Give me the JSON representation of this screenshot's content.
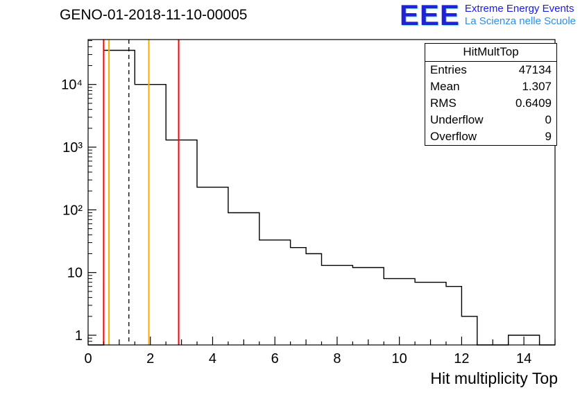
{
  "title": "GENO-01-2018-11-10-00005",
  "logo": {
    "text": "EEE",
    "line1": "Extreme Energy Events",
    "line2": "La Scienza nelle Scuole",
    "color": "#2121d6",
    "accent": "#2b8fe8"
  },
  "stats": {
    "title": "HitMultTop",
    "rows": [
      {
        "label": "Entries",
        "value": "47134"
      },
      {
        "label": "Mean",
        "value": "1.307"
      },
      {
        "label": "RMS",
        "value": "0.6409"
      },
      {
        "label": "Underflow",
        "value": "0"
      },
      {
        "label": "Overflow",
        "value": "9"
      }
    ]
  },
  "chart_data": {
    "type": "histogram-step",
    "title": "GENO-01-2018-11-10-00005",
    "xlabel": "Hit multiplicity Top",
    "ylabel": "",
    "x_range": [
      0,
      15
    ],
    "y_scale": "log",
    "y_range": [
      0.7,
      52000
    ],
    "grid": false,
    "bin_start": 0.5,
    "bin_width": 0.5,
    "bin_heights": [
      35000,
      35000,
      10000,
      10000,
      1300,
      1300,
      230,
      230,
      90,
      90,
      33,
      33,
      25,
      20,
      13,
      13,
      12,
      12,
      8,
      8,
      7,
      7,
      6,
      2,
      0,
      0,
      1,
      1,
      0
    ],
    "x_ticks_major": [
      0,
      2,
      4,
      6,
      8,
      10,
      12,
      14
    ],
    "y_tick_labels": [
      {
        "value": 1,
        "label": "1"
      },
      {
        "value": 10,
        "label": "10"
      },
      {
        "value": 100,
        "label": "10²"
      },
      {
        "value": 1000,
        "label": "10³"
      },
      {
        "value": 10000,
        "label": "10⁴"
      }
    ],
    "hist_color": "#000000",
    "vertical_lines": [
      {
        "x": 0.5,
        "color": "#ff0000",
        "style": "solid",
        "name": "red-line-low"
      },
      {
        "x": 0.67,
        "color": "#ffaa00",
        "style": "solid",
        "name": "yellow-line-low"
      },
      {
        "x": 1.31,
        "color": "#000000",
        "style": "dashed",
        "name": "mean-line"
      },
      {
        "x": 1.95,
        "color": "#ffaa00",
        "style": "solid",
        "name": "yellow-line-high"
      },
      {
        "x": 2.91,
        "color": "#ff0000",
        "style": "solid",
        "name": "red-line-high"
      }
    ]
  }
}
